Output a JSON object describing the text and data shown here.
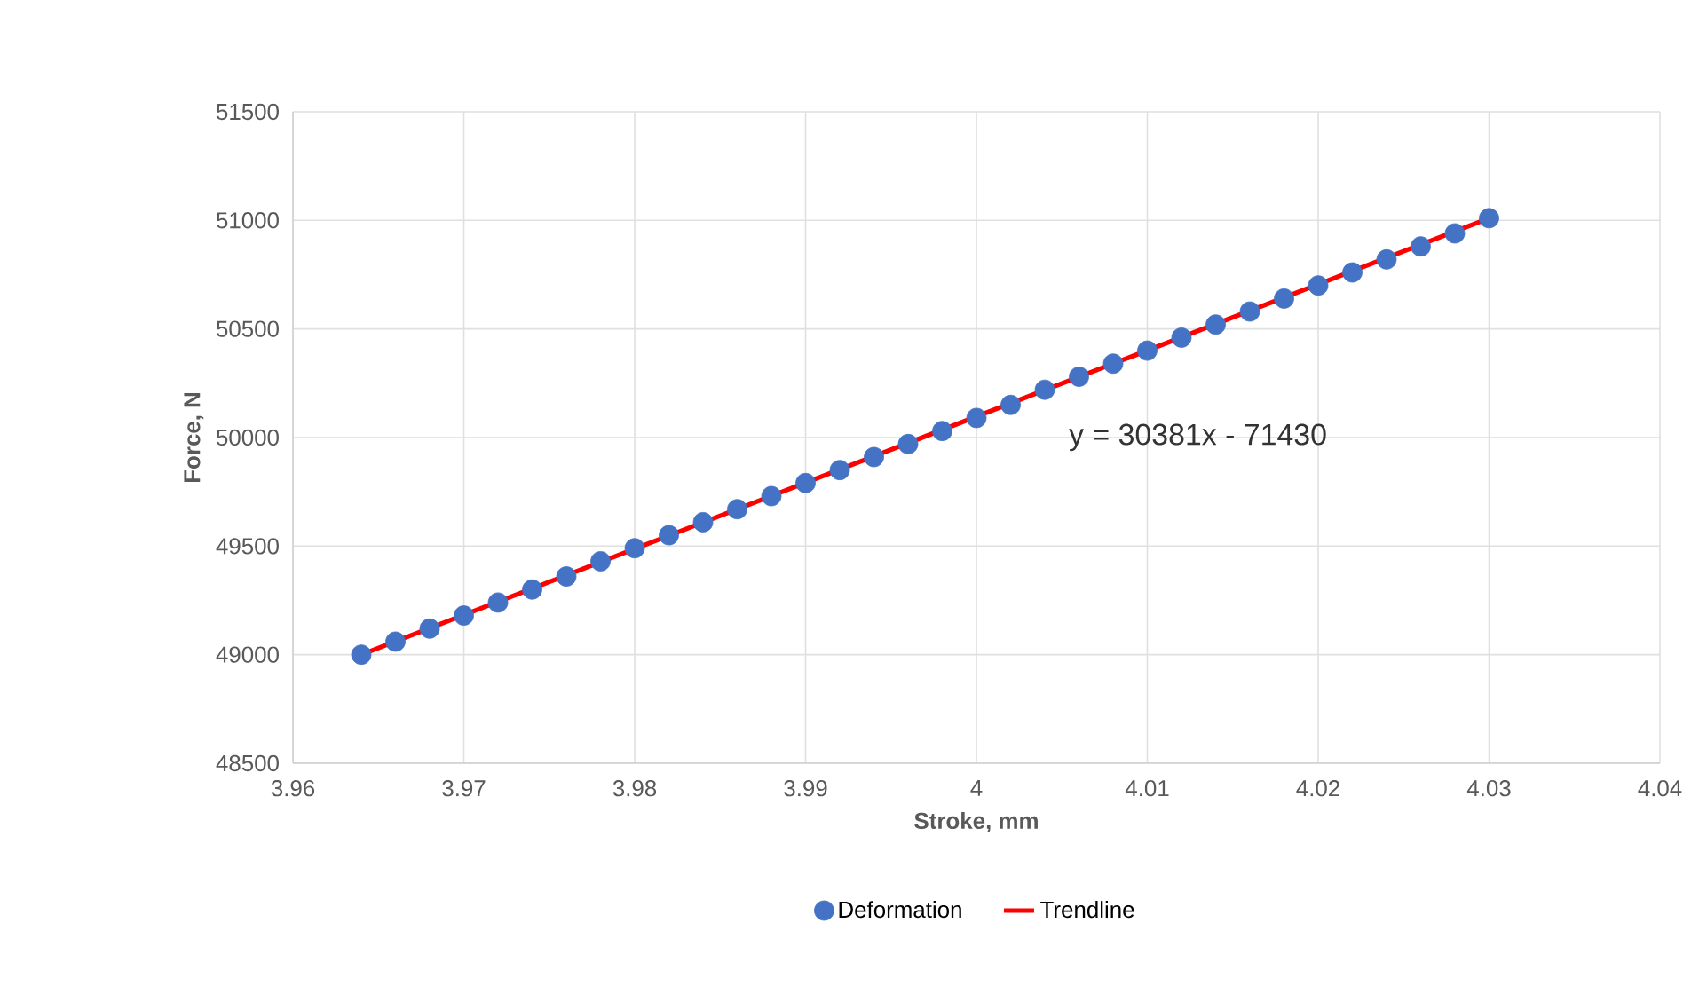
{
  "chart_data": {
    "type": "scatter",
    "xlabel": "Stroke, mm",
    "ylabel": "Force, N",
    "xlim": [
      3.96,
      4.04
    ],
    "xticks": [
      3.96,
      3.97,
      3.98,
      3.99,
      4,
      4.01,
      4.02,
      4.03,
      4.04
    ],
    "ylim": [
      48500,
      51500
    ],
    "yticks": [
      48500,
      49000,
      49500,
      50000,
      50500,
      51000,
      51500
    ],
    "grid": true,
    "legend": "bottom",
    "annotations": [
      "y = 30381x - 71430"
    ],
    "series": [
      {
        "name": "Deformation",
        "color": "#4472c4",
        "marker": "circle",
        "x": [
          3.964,
          3.966,
          3.968,
          3.97,
          3.972,
          3.974,
          3.976,
          3.978,
          3.98,
          3.982,
          3.984,
          3.986,
          3.988,
          3.99,
          3.992,
          3.994,
          3.996,
          3.998,
          4.0,
          4.002,
          4.004,
          4.006,
          4.008,
          4.01,
          4.012,
          4.014,
          4.016,
          4.018,
          4.02,
          4.022,
          4.024,
          4.026,
          4.028,
          4.03
        ],
        "values": [
          49000,
          49060,
          49120,
          49180,
          49240,
          49300,
          49360,
          49430,
          49490,
          49550,
          49610,
          49670,
          49730,
          49790,
          49850,
          49910,
          49970,
          50030,
          50090,
          50150,
          50220,
          50280,
          50340,
          50400,
          50460,
          50520,
          50580,
          50640,
          50700,
          50760,
          50820,
          50880,
          50940,
          51010
        ]
      },
      {
        "name": "Trendline",
        "type": "line",
        "color": "#ff0000",
        "x": [
          3.964,
          4.03
        ],
        "values": [
          49000,
          51010
        ],
        "marker": "none"
      }
    ]
  }
}
